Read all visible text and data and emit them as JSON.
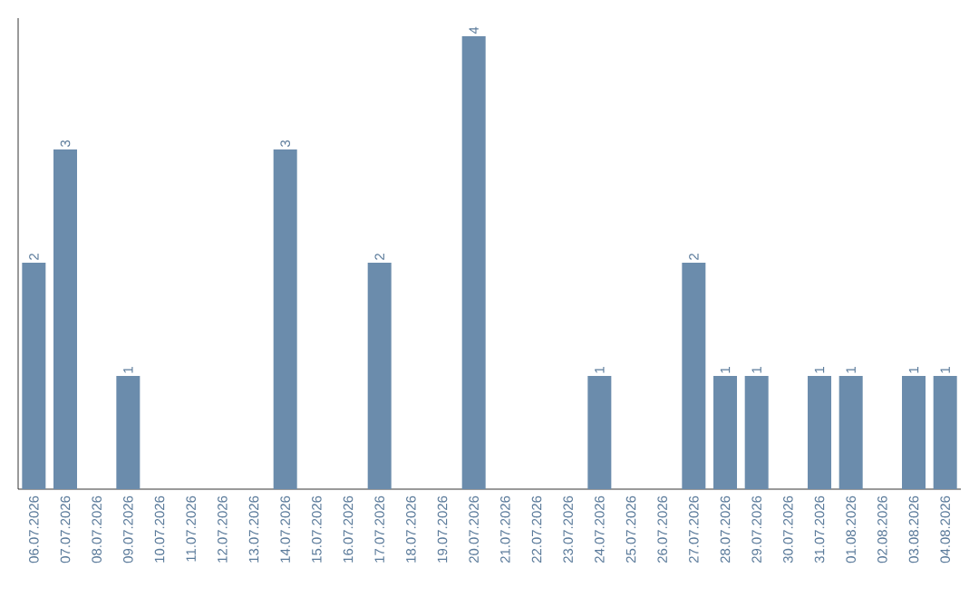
{
  "chart_data": {
    "type": "bar",
    "categories": [
      "06.07.2026",
      "07.07.2026",
      "08.07.2026",
      "09.07.2026",
      "10.07.2026",
      "11.07.2026",
      "12.07.2026",
      "13.07.2026",
      "14.07.2026",
      "15.07.2026",
      "16.07.2026",
      "17.07.2026",
      "18.07.2026",
      "19.07.2026",
      "20.07.2026",
      "21.07.2026",
      "22.07.2026",
      "23.07.2026",
      "24.07.2026",
      "25.07.2026",
      "26.07.2026",
      "27.07.2026",
      "28.07.2026",
      "29.07.2026",
      "30.07.2026",
      "31.07.2026",
      "01.08.2026",
      "02.08.2026",
      "03.08.2026",
      "04.08.2026"
    ],
    "values": [
      2,
      3,
      0,
      1,
      0,
      0,
      0,
      0,
      3,
      0,
      0,
      2,
      0,
      0,
      4,
      0,
      0,
      0,
      1,
      0,
      0,
      2,
      1,
      1,
      0,
      1,
      1,
      0,
      1,
      1
    ],
    "value_labels": [
      "2",
      "3",
      null,
      "1",
      null,
      null,
      null,
      null,
      "3",
      null,
      null,
      "2",
      null,
      null,
      "4",
      null,
      null,
      null,
      "1",
      null,
      null,
      "2",
      "1",
      "1",
      null,
      "1",
      "1",
      null,
      "1",
      "1"
    ],
    "color": "#6b8cac",
    "tick_labels": "x"
  }
}
